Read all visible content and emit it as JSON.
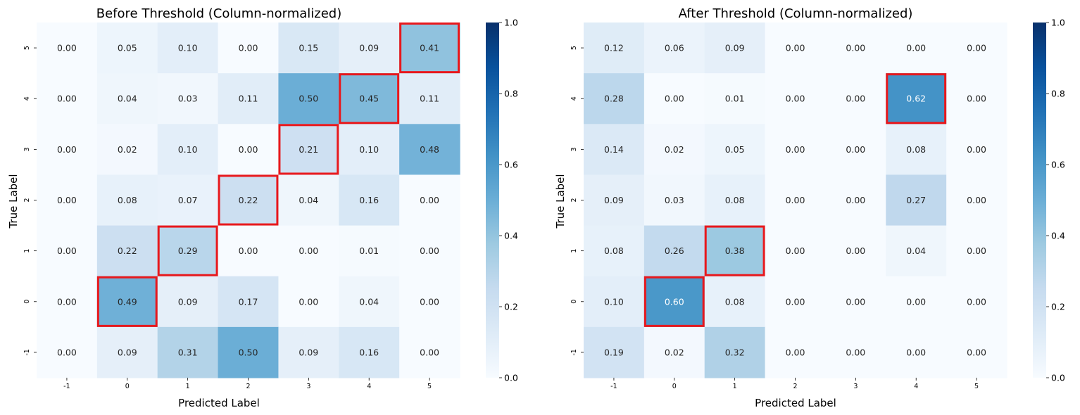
{
  "chart_data": [
    {
      "type": "heatmap",
      "title": "Before Threshold (Column-normalized)",
      "xlabel": "Predicted Label",
      "ylabel": "True Label",
      "x_categories": [
        "-1",
        "0",
        "1",
        "2",
        "3",
        "4",
        "5"
      ],
      "y_categories": [
        "5",
        "4",
        "3",
        "2",
        "1",
        "0",
        "-1"
      ],
      "values": [
        [
          0.0,
          0.05,
          0.1,
          0.0,
          0.15,
          0.09,
          0.41
        ],
        [
          0.0,
          0.04,
          0.03,
          0.11,
          0.5,
          0.45,
          0.11
        ],
        [
          0.0,
          0.02,
          0.1,
          0.0,
          0.21,
          0.1,
          0.48
        ],
        [
          0.0,
          0.08,
          0.07,
          0.22,
          0.04,
          0.16,
          0.0
        ],
        [
          0.0,
          0.22,
          0.29,
          0.0,
          0.0,
          0.01,
          0.0
        ],
        [
          0.0,
          0.49,
          0.09,
          0.17,
          0.0,
          0.04,
          0.0
        ],
        [
          0.0,
          0.09,
          0.31,
          0.5,
          0.09,
          0.16,
          0.0
        ]
      ],
      "highlighted_cells": [
        {
          "true": "5",
          "pred": "5"
        },
        {
          "true": "4",
          "pred": "4"
        },
        {
          "true": "3",
          "pred": "3"
        },
        {
          "true": "2",
          "pred": "2"
        },
        {
          "true": "1",
          "pred": "1"
        },
        {
          "true": "0",
          "pred": "0"
        }
      ],
      "highlight_color": "#e8181c",
      "colormap": "Blues",
      "colorbar": {
        "range": [
          0,
          1
        ],
        "ticks": [
          "0.0",
          "0.2",
          "0.4",
          "0.6",
          "0.8",
          "1.0"
        ]
      },
      "value_format": "2 decimals"
    },
    {
      "type": "heatmap",
      "title": "After Threshold (Column-normalized)",
      "xlabel": "Predicted Label",
      "ylabel": "True Label",
      "x_categories": [
        "-1",
        "0",
        "1",
        "2",
        "3",
        "4",
        "5"
      ],
      "y_categories": [
        "5",
        "4",
        "3",
        "2",
        "1",
        "0",
        "-1"
      ],
      "values": [
        [
          0.12,
          0.06,
          0.09,
          0.0,
          0.0,
          0.0,
          0.0
        ],
        [
          0.28,
          0.0,
          0.01,
          0.0,
          0.0,
          0.62,
          0.0
        ],
        [
          0.14,
          0.02,
          0.05,
          0.0,
          0.0,
          0.08,
          0.0
        ],
        [
          0.09,
          0.03,
          0.08,
          0.0,
          0.0,
          0.27,
          0.0
        ],
        [
          0.08,
          0.26,
          0.38,
          0.0,
          0.0,
          0.04,
          0.0
        ],
        [
          0.1,
          0.6,
          0.08,
          0.0,
          0.0,
          0.0,
          0.0
        ],
        [
          0.19,
          0.02,
          0.32,
          0.0,
          0.0,
          0.0,
          0.0
        ]
      ],
      "highlighted_cells": [
        {
          "true": "4",
          "pred": "4"
        },
        {
          "true": "1",
          "pred": "1"
        },
        {
          "true": "0",
          "pred": "0"
        }
      ],
      "highlight_color": "#e8181c",
      "colormap": "Blues",
      "colorbar": {
        "range": [
          0,
          1
        ],
        "ticks": [
          "0.0",
          "0.2",
          "0.4",
          "0.6",
          "0.8",
          "1.0"
        ]
      },
      "value_format": "2 decimals"
    }
  ]
}
